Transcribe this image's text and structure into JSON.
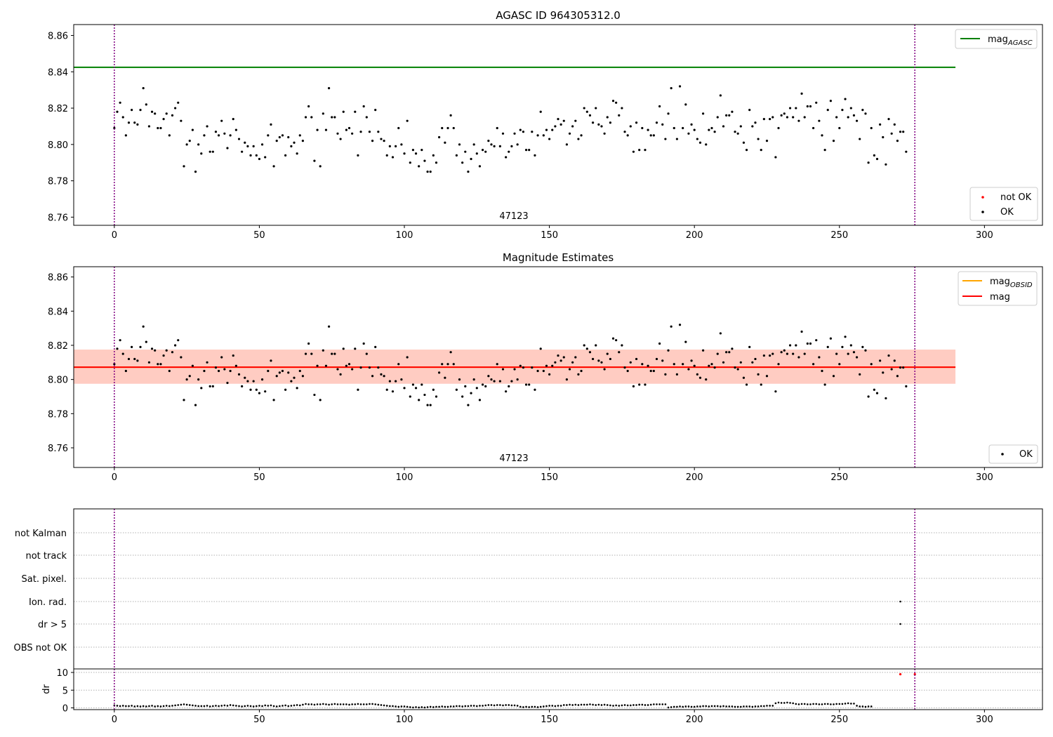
{
  "figure": {
    "vlines_x": [
      0,
      276
    ],
    "colors": {
      "ok": "#000000",
      "not_ok": "#ff0000",
      "mag_agasc": "#008000",
      "mag_obsid": "#ffa500",
      "mag": "#ff0000",
      "band_pink": "#ffc0cb",
      "band_orange": "#ffa07a",
      "vline": "#800080",
      "grid": "#b0b0b0"
    }
  },
  "chart_data": [
    {
      "type": "scatter",
      "title": "AGASC ID 964305312.0",
      "annotation": "47123",
      "xlim": [
        -14,
        320
      ],
      "ylim": [
        8.7555,
        8.866
      ],
      "xticks": [
        0,
        50,
        100,
        150,
        200,
        250,
        300
      ],
      "yticks": [
        8.76,
        8.78,
        8.8,
        8.82,
        8.84,
        8.86
      ],
      "yticklabels": [
        "8.76",
        "8.78",
        "8.80",
        "8.82",
        "8.84",
        "8.86"
      ],
      "hlines": [
        {
          "name": "mag",
          "sub": "AGASC",
          "y": 8.8425,
          "x": [
            -14,
            290
          ],
          "color": "mag_agasc"
        }
      ],
      "legend_top": [
        {
          "name": "mag",
          "sub": "AGASC",
          "kind": "line",
          "color": "mag_agasc"
        }
      ],
      "legend_bottom": [
        {
          "name": "not OK",
          "kind": "dot",
          "color": "not_ok"
        },
        {
          "name": "OK",
          "kind": "dot",
          "color": "ok"
        }
      ],
      "series": [
        {
          "name": "OK",
          "x_start": 0,
          "x_step": 1,
          "values": [
            8.809,
            8.818,
            8.823,
            8.815,
            8.805,
            8.812,
            8.819,
            8.812,
            8.811,
            8.819,
            8.831,
            8.822,
            8.81,
            8.818,
            8.817,
            8.809,
            8.809,
            8.814,
            8.817,
            8.805,
            8.816,
            8.82,
            8.823,
            8.813,
            8.788,
            8.8,
            8.802,
            8.808,
            8.785,
            8.8,
            8.795,
            8.805,
            8.81,
            8.796,
            8.796,
            8.807,
            8.805,
            8.813,
            8.806,
            8.798,
            8.805,
            8.814,
            8.808,
            8.803,
            8.796,
            8.801,
            8.799,
            8.794,
            8.799,
            8.794,
            8.792,
            8.8,
            8.793,
            8.805,
            8.811,
            8.788,
            8.802,
            8.804,
            8.805,
            8.794,
            8.804,
            8.799,
            8.801,
            8.795,
            8.805,
            8.802,
            8.815,
            8.821,
            8.815,
            8.791,
            8.808,
            8.788,
            8.817,
            8.808,
            8.831,
            8.815,
            8.815,
            8.806,
            8.803,
            8.818,
            8.808,
            8.809,
            8.806,
            8.818,
            8.794,
            8.807,
            8.821,
            8.815,
            8.807,
            8.802,
            8.819,
            8.807,
            8.803,
            8.802,
            8.794,
            8.799,
            8.793,
            8.799,
            8.809,
            8.8,
            8.795,
            8.813,
            8.79,
            8.797,
            8.795,
            8.788,
            8.797,
            8.791,
            8.785,
            8.785,
            8.794,
            8.79,
            8.804,
            8.809,
            8.801,
            8.809,
            8.816,
            8.809,
            8.794,
            8.8,
            8.79,
            8.796,
            8.785,
            8.792,
            8.8,
            8.795,
            8.788,
            8.797,
            8.796,
            8.802,
            8.8,
            8.799,
            8.809,
            8.799,
            8.806,
            8.793,
            8.796,
            8.799,
            8.806,
            8.8,
            8.808,
            8.807,
            8.797,
            8.797,
            8.807,
            8.794,
            8.805,
            8.818,
            8.805,
            8.808,
            8.803,
            8.808,
            8.81,
            8.814,
            8.811,
            8.813,
            8.8,
            8.806,
            8.81,
            8.813,
            8.803,
            8.805,
            8.82,
            8.818,
            8.816,
            8.812,
            8.82,
            8.811,
            8.81,
            8.806,
            8.815,
            8.812,
            8.824,
            8.823,
            8.816,
            8.82,
            8.807,
            8.805,
            8.81,
            8.796,
            8.812,
            8.797,
            8.809,
            8.797,
            8.808,
            8.805,
            8.805,
            8.812,
            8.821,
            8.811,
            8.803,
            8.817,
            8.831,
            8.809,
            8.803,
            8.832,
            8.809,
            8.822,
            8.806,
            8.811,
            8.808,
            8.803,
            8.801,
            8.817,
            8.8,
            8.808,
            8.809,
            8.807,
            8.815,
            8.827,
            8.81,
            8.816,
            8.816,
            8.818,
            8.807,
            8.806,
            8.81,
            8.801,
            8.797,
            8.819,
            8.81,
            8.812,
            8.803,
            8.797,
            8.814,
            8.802,
            8.814,
            8.815,
            8.793,
            8.809,
            8.816,
            8.817,
            8.815,
            8.82,
            8.815,
            8.82,
            8.813,
            8.828,
            8.815,
            8.821,
            8.821,
            8.809,
            8.823,
            8.813,
            8.805,
            8.797,
            8.819,
            8.824,
            8.802,
            8.815,
            8.809,
            8.819,
            8.825,
            8.815,
            8.82,
            8.816,
            8.813,
            8.803,
            8.819,
            8.817,
            8.79,
            8.809,
            8.794,
            8.792,
            8.811,
            8.804,
            8.789,
            8.814,
            8.806,
            8.811,
            8.802,
            8.807,
            8.807,
            8.796
          ]
        }
      ]
    },
    {
      "type": "scatter",
      "title": "Magnitude Estimates",
      "annotation": "47123",
      "xlim": [
        -14,
        320
      ],
      "ylim": [
        8.7485,
        8.866
      ],
      "xticks": [
        0,
        50,
        100,
        150,
        200,
        250,
        300
      ],
      "yticks": [
        8.76,
        8.78,
        8.8,
        8.82,
        8.84,
        8.86
      ],
      "yticklabels": [
        "8.76",
        "8.78",
        "8.80",
        "8.82",
        "8.84",
        "8.86"
      ],
      "bands": [
        {
          "y": [
            8.7975,
            8.8175
          ],
          "x": [
            -14,
            290
          ],
          "color": "band_pink",
          "opacity": 0.45
        },
        {
          "y": [
            8.7975,
            8.8175
          ],
          "x": [
            -14,
            290
          ],
          "color": "band_orange",
          "opacity": 0.35
        }
      ],
      "hlines": [
        {
          "name": "mag",
          "sub": "OBSID",
          "y": 8.8072,
          "x": [
            -14,
            290
          ],
          "color": "mag_obsid"
        },
        {
          "name": "mag",
          "sub": "",
          "y": 8.8072,
          "x": [
            -14,
            290
          ],
          "color": "mag"
        }
      ],
      "legend_top": [
        {
          "name": "mag",
          "sub": "OBSID",
          "kind": "line",
          "color": "mag_obsid"
        },
        {
          "name": "mag",
          "sub": "",
          "kind": "line",
          "color": "mag"
        }
      ],
      "legend_bottom": [
        {
          "name": "OK",
          "kind": "dot",
          "color": "ok"
        }
      ],
      "series": [
        {
          "name": "OK",
          "same_as_chart": 0
        }
      ]
    },
    {
      "type": "scatter",
      "title": "",
      "xlim": [
        -14,
        320
      ],
      "xticks": [
        0,
        50,
        100,
        150,
        200,
        250,
        300
      ],
      "flag_labels": [
        "not Kalman",
        "not track",
        "Sat. pixel.",
        "Ion. rad.",
        "dr > 5",
        "OBS not OK"
      ],
      "flags": [
        {
          "flag": "Ion. rad.",
          "x": [
            271
          ],
          "color": "ok"
        },
        {
          "flag": "dr > 5",
          "x": [
            271
          ],
          "color": "ok"
        }
      ],
      "dr": {
        "ylabel": "dr",
        "ylim": [
          -0.5,
          11
        ],
        "yticks": [
          0,
          5,
          10
        ],
        "yticklabels": [
          "0",
          "5",
          "10"
        ],
        "values": [
          0.7,
          0.6,
          0.5,
          0.6,
          0.5,
          0.5,
          0.6,
          0.4,
          0.5,
          0.4,
          0.5,
          0.4,
          0.5,
          0.6,
          0.4,
          0.5,
          0.4,
          0.5,
          0.6,
          0.5,
          0.6,
          0.7,
          0.8,
          0.9,
          1.0,
          0.9,
          0.8,
          0.7,
          0.6,
          0.5,
          0.5,
          0.5,
          0.6,
          0.4,
          0.5,
          0.6,
          0.5,
          0.6,
          0.7,
          0.6,
          0.8,
          0.7,
          0.6,
          0.5,
          0.4,
          0.5,
          0.6,
          0.5,
          0.4,
          0.5,
          0.6,
          0.5,
          0.7,
          0.6,
          0.7,
          0.5,
          0.4,
          0.5,
          0.6,
          0.7,
          0.5,
          0.6,
          0.7,
          0.8,
          0.7,
          0.9,
          1.1,
          1.0,
          1.0,
          0.9,
          1.0,
          1.0,
          1.1,
          1.0,
          0.9,
          1.0,
          1.1,
          1.0,
          1.0,
          1.0,
          1.0,
          0.9,
          1.0,
          1.0,
          1.1,
          1.0,
          1.0,
          1.0,
          1.1,
          1.1,
          1.0,
          0.9,
          0.8,
          0.7,
          0.6,
          0.5,
          0.5,
          0.4,
          0.3,
          0.4,
          0.4,
          0.3,
          0.2,
          0.1,
          0.2,
          0.1,
          0.2,
          0.1,
          0.2,
          0.3,
          0.2,
          0.3,
          0.3,
          0.4,
          0.3,
          0.3,
          0.4,
          0.4,
          0.5,
          0.5,
          0.4,
          0.5,
          0.5,
          0.6,
          0.6,
          0.5,
          0.6,
          0.6,
          0.7,
          0.8,
          0.8,
          0.7,
          0.8,
          0.8,
          0.7,
          0.8,
          0.8,
          0.7,
          0.7,
          0.6,
          0.3,
          0.2,
          0.3,
          0.2,
          0.3,
          0.3,
          0.2,
          0.3,
          0.4,
          0.5,
          0.6,
          0.6,
          0.5,
          0.6,
          0.6,
          0.8,
          0.8,
          0.9,
          0.8,
          0.9,
          0.8,
          0.9,
          0.9,
          0.9,
          1.0,
          0.9,
          0.8,
          0.9,
          0.8,
          0.9,
          0.8,
          0.7,
          0.6,
          0.7,
          0.6,
          0.7,
          0.8,
          0.7,
          0.7,
          0.8,
          0.8,
          0.9,
          0.9,
          0.8,
          0.8,
          0.9,
          1.0,
          1.0,
          1.0,
          1.0,
          1.0,
          0.1,
          0.2,
          0.3,
          0.3,
          0.4,
          0.3,
          0.4,
          0.4,
          0.3,
          0.3,
          0.4,
          0.4,
          0.5,
          0.5,
          0.4,
          0.5,
          0.5,
          0.5,
          0.4,
          0.5,
          0.4,
          0.4,
          0.4,
          0.3,
          0.3,
          0.3,
          0.4,
          0.4,
          0.4,
          0.3,
          0.4,
          0.4,
          0.5,
          0.5,
          0.6,
          0.6,
          0.6,
          1.3,
          1.5,
          1.4,
          1.4,
          1.5,
          1.4,
          1.3,
          1.1,
          1.0,
          1.1,
          1.1,
          1.0,
          1.0,
          1.1,
          1.1,
          1.0,
          1.0,
          1.1,
          1.1,
          1.0,
          1.0,
          1.1,
          1.1,
          1.1,
          1.2,
          1.3,
          1.2,
          1.2,
          0.6,
          0.4,
          0.4,
          0.3,
          0.4,
          0.4
        ],
        "outliers": [
          {
            "x": 271,
            "y": 9.5,
            "color": "not_ok"
          },
          {
            "x": 276,
            "y": 9.5,
            "color": "not_ok"
          }
        ]
      }
    }
  ]
}
